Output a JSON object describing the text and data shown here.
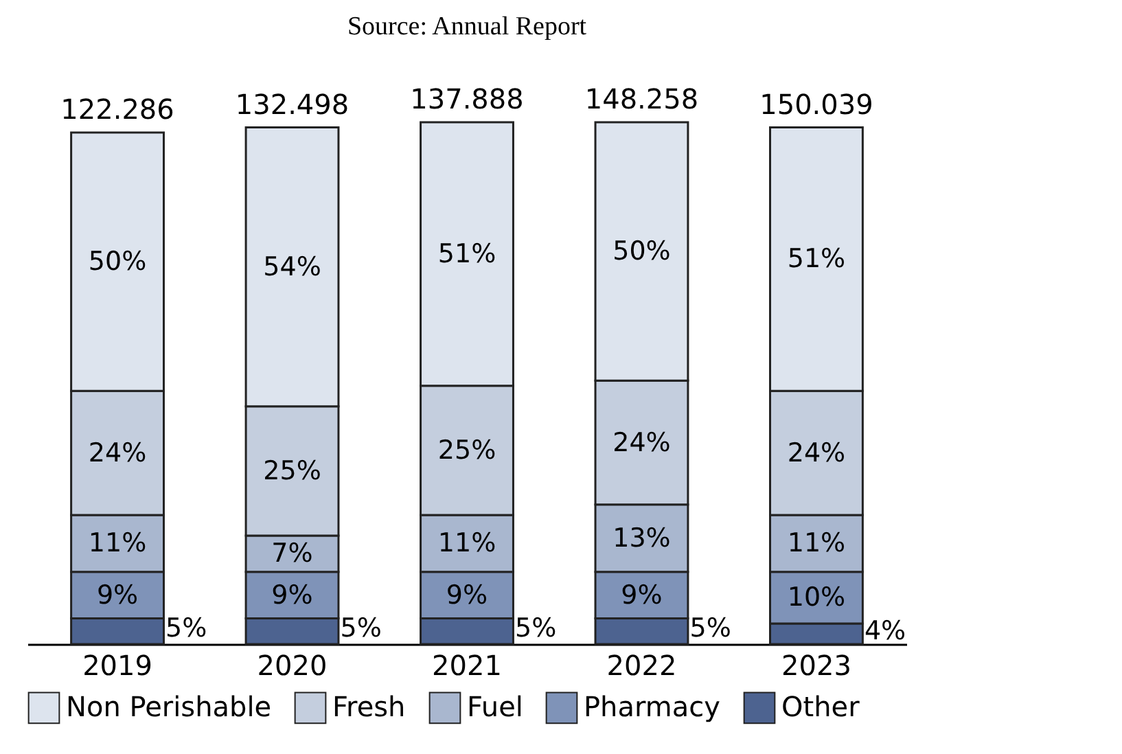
{
  "chart_data": {
    "type": "bar",
    "stacked": true,
    "annotations": [
      "Source: Annual Report",
      "122.286",
      "132.498",
      "137.888",
      "148.258",
      "150.039"
    ],
    "categories": [
      "2019",
      "2020",
      "2021",
      "2022",
      "2023"
    ],
    "series": [
      {
        "name": "Other",
        "color": "#4d6390",
        "values": [
          5,
          5,
          5,
          5,
          4
        ],
        "value_labels": [
          "5%",
          "5%",
          "5%",
          "5%",
          "4%"
        ]
      },
      {
        "name": "Pharmacy",
        "color": "#7f93b8",
        "values": [
          9,
          9,
          9,
          9,
          10
        ],
        "value_labels": [
          "9%",
          "9%",
          "9%",
          "9%",
          "10%"
        ]
      },
      {
        "name": "Fuel",
        "color": "#a9b7cf",
        "values": [
          11,
          7,
          11,
          13,
          11
        ],
        "value_labels": [
          "11%",
          "7%",
          "11%",
          "13%",
          "11%"
        ]
      },
      {
        "name": "Fresh",
        "color": "#c4cede",
        "values": [
          24,
          25,
          25,
          24,
          24
        ],
        "value_labels": [
          "24%",
          "25%",
          "25%",
          "24%",
          "24%"
        ]
      },
      {
        "name": "Non Perishable",
        "color": "#dde4ee",
        "values": [
          50,
          54,
          51,
          50,
          51
        ],
        "value_labels": [
          "50%",
          "54%",
          "51%",
          "50%",
          "51%"
        ]
      }
    ],
    "legend": "bottom",
    "tick_labels": "x"
  }
}
